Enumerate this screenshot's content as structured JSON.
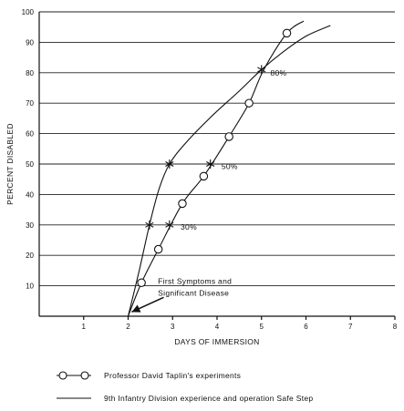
{
  "chart_data": {
    "type": "line",
    "xlabel": "DAYS OF IMMERSION",
    "ylabel": "PERCENT DISABLED",
    "xlim": [
      0,
      8
    ],
    "ylim": [
      0,
      100
    ],
    "x_ticks": [
      1,
      2,
      3,
      4,
      5,
      6,
      7,
      8
    ],
    "y_ticks": [
      10,
      20,
      30,
      40,
      50,
      60,
      70,
      80,
      90,
      100
    ],
    "grid": "horizontal",
    "series": [
      {
        "name": "Professor David Taplin's experiments",
        "marker": "circle",
        "points": [
          {
            "x": 2.0,
            "y": 0
          },
          {
            "x": 2.3,
            "y": 11
          },
          {
            "x": 2.68,
            "y": 22
          },
          {
            "x": 3.22,
            "y": 37
          },
          {
            "x": 3.7,
            "y": 46
          },
          {
            "x": 4.27,
            "y": 59
          },
          {
            "x": 4.72,
            "y": 70
          },
          {
            "x": 5.05,
            "y": 81
          },
          {
            "x": 5.57,
            "y": 93
          },
          {
            "x": 5.95,
            "y": 97
          }
        ],
        "marked_indices": [
          1,
          2,
          3,
          4,
          5,
          6,
          8
        ]
      },
      {
        "name": "9th Infantry Division experience and operation Safe Step",
        "marker": "none",
        "points": [
          {
            "x": 2.0,
            "y": 0
          },
          {
            "x": 2.25,
            "y": 15
          },
          {
            "x": 2.48,
            "y": 30
          },
          {
            "x": 2.7,
            "y": 42
          },
          {
            "x": 2.93,
            "y": 50
          },
          {
            "x": 3.3,
            "y": 57
          },
          {
            "x": 3.9,
            "y": 66
          },
          {
            "x": 4.5,
            "y": 74
          },
          {
            "x": 5.0,
            "y": 81
          },
          {
            "x": 5.5,
            "y": 87
          },
          {
            "x": 6.0,
            "y": 92
          },
          {
            "x": 6.55,
            "y": 95.5
          }
        ]
      }
    ],
    "star_markers": [
      {
        "x": 2.48,
        "y": 30
      },
      {
        "x": 2.93,
        "y": 50
      },
      {
        "x": 2.93,
        "y": 30
      },
      {
        "x": 3.85,
        "y": 50
      },
      {
        "x": 5.0,
        "y": 81
      }
    ],
    "annotations": [
      {
        "text": "80%",
        "x": 5.2,
        "y": 80
      },
      {
        "text": "50%",
        "x": 4.1,
        "y": 49.3
      },
      {
        "text": "30%",
        "x": 3.18,
        "y": 29.3
      },
      {
        "text": "First Symptoms and",
        "x": 2.67,
        "y": 11.5
      },
      {
        "text": "Significant Disease",
        "x": 2.67,
        "y": 7.6
      }
    ],
    "arrow": {
      "from": {
        "x": 2.8,
        "y": 6.2
      },
      "to": {
        "x": 2.08,
        "y": 1.4
      }
    },
    "legend": [
      {
        "label": "Professor David Taplin's experiments",
        "style": "line-circles"
      },
      {
        "label": "9th Infantry Division experience and operation Safe Step",
        "style": "line"
      }
    ]
  }
}
